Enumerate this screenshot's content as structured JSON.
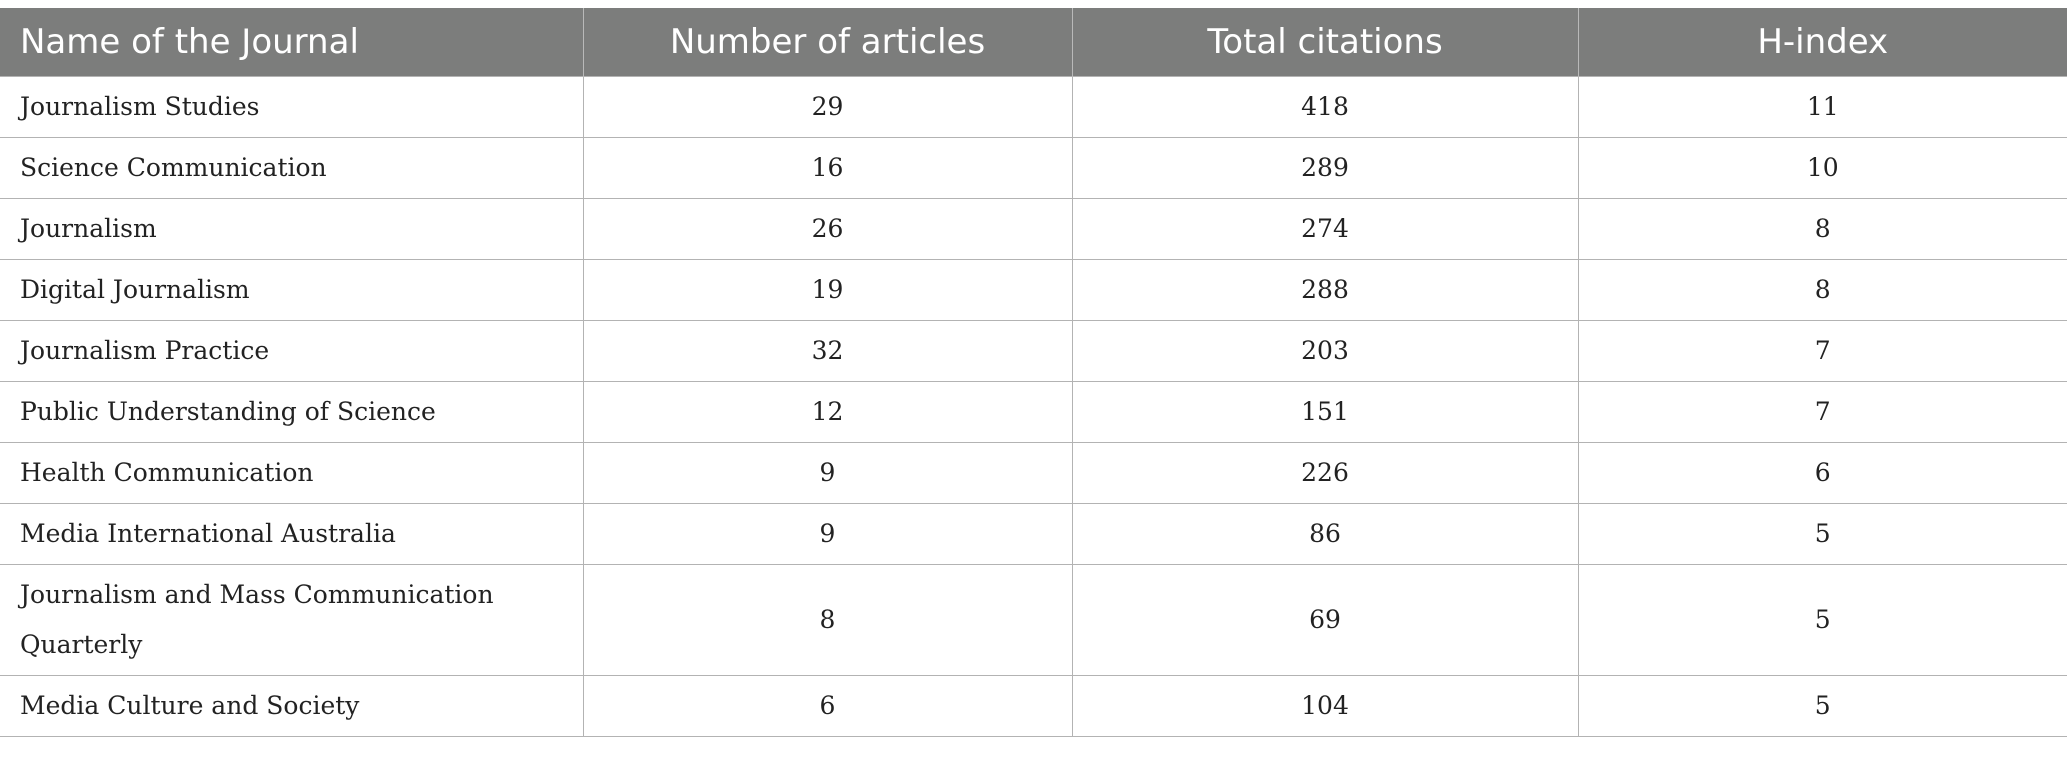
{
  "table": {
    "headers": [
      "Name of the Journal",
      "Number of articles",
      "Total citations",
      "H-index"
    ],
    "rows": [
      {
        "journal": "Journalism Studies",
        "articles": "29",
        "citations": "418",
        "h_index": "11"
      },
      {
        "journal": "Science Communication",
        "articles": "16",
        "citations": "289",
        "h_index": "10"
      },
      {
        "journal": "Journalism",
        "articles": "26",
        "citations": "274",
        "h_index": "8"
      },
      {
        "journal": "Digital Journalism",
        "articles": "19",
        "citations": "288",
        "h_index": "8"
      },
      {
        "journal": "Journalism Practice",
        "articles": "32",
        "citations": "203",
        "h_index": "7"
      },
      {
        "journal": "Public Understanding of Science",
        "articles": "12",
        "citations": "151",
        "h_index": "7"
      },
      {
        "journal": "Health Communication",
        "articles": "9",
        "citations": "226",
        "h_index": "6"
      },
      {
        "journal": "Media International Australia",
        "articles": "9",
        "citations": "86",
        "h_index": "5"
      },
      {
        "journal": "Journalism and Mass Communication Quarterly",
        "articles": "8",
        "citations": "69",
        "h_index": "5"
      },
      {
        "journal": "Media Culture and Society",
        "articles": "6",
        "citations": "104",
        "h_index": "5"
      }
    ]
  },
  "colors": {
    "header_background": "#7c7d7c",
    "header_text": "#ffffff",
    "grid_lines": "#b3b3b3"
  }
}
